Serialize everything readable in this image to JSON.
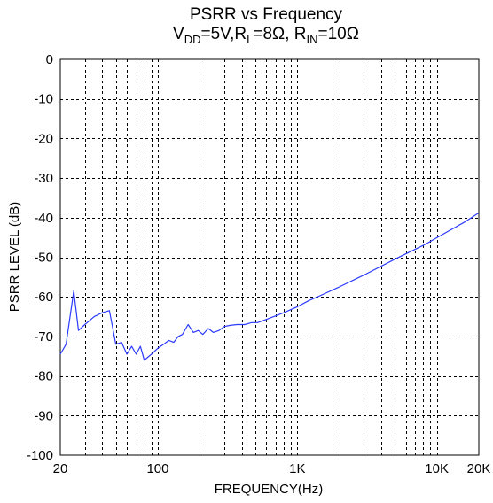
{
  "chart_data": {
    "type": "line",
    "title": "PSRR vs Frequency",
    "subtitle": {
      "parts": [
        {
          "text": "V",
          "sub": false
        },
        {
          "text": "DD",
          "sub": true
        },
        {
          "text": "=5V,R",
          "sub": false
        },
        {
          "text": "L",
          "sub": true
        },
        {
          "text": "=8Ω, R",
          "sub": false
        },
        {
          "text": "IN",
          "sub": true
        },
        {
          "text": "=10Ω",
          "sub": false
        }
      ]
    },
    "xlabel": "FREQUENCY(Hz)",
    "ylabel": "PSRR LEVEL (dB)",
    "xscale": "log",
    "xlim": [
      20,
      20000
    ],
    "ylim": [
      -100,
      0
    ],
    "xticks": [
      {
        "value": 20,
        "label": "20"
      },
      {
        "value": 100,
        "label": "100"
      },
      {
        "value": 1000,
        "label": "1K"
      },
      {
        "value": 10000,
        "label": "10K"
      },
      {
        "value": 20000,
        "label": "20K"
      }
    ],
    "yticks": [
      {
        "value": 0,
        "label": "0"
      },
      {
        "value": -10,
        "label": "-10"
      },
      {
        "value": -20,
        "label": "-20"
      },
      {
        "value": -30,
        "label": "-30"
      },
      {
        "value": -40,
        "label": "-40"
      },
      {
        "value": -50,
        "label": "-50"
      },
      {
        "value": -60,
        "label": "-60"
      },
      {
        "value": -70,
        "label": "-70"
      },
      {
        "value": -80,
        "label": "-80"
      },
      {
        "value": -90,
        "label": "-90"
      },
      {
        "value": -100,
        "label": "-100"
      }
    ],
    "grid": true,
    "grid_style": "dashed",
    "series": [
      {
        "color": "#2b3bff",
        "x": [
          20,
          22,
          25,
          27,
          30,
          35,
          40,
          45,
          50,
          55,
          60,
          65,
          70,
          75,
          80,
          90,
          100,
          110,
          120,
          130,
          140,
          150,
          165,
          180,
          195,
          210,
          230,
          250,
          275,
          300,
          330,
          370,
          420,
          470,
          520,
          600,
          700,
          800,
          1000,
          1200,
          1500,
          2000,
          3000,
          5000,
          8000,
          12000,
          16000,
          20000
        ],
        "y": [
          -74.5,
          -72,
          -58.5,
          -68.5,
          -67,
          -65,
          -64,
          -63.5,
          -72,
          -71.5,
          -74.5,
          -72.5,
          -74.5,
          -72.5,
          -76,
          -74.5,
          -73,
          -72,
          -71,
          -71.5,
          -70,
          -69.5,
          -67,
          -69,
          -68.5,
          -69.5,
          -68,
          -69,
          -68.5,
          -67.5,
          -67.2,
          -67,
          -67,
          -66.5,
          -66.5,
          -65.7,
          -64.8,
          -64,
          -62.5,
          -61,
          -59.5,
          -57.5,
          -54.5,
          -50.5,
          -47,
          -43.5,
          -41,
          -38.8
        ]
      }
    ]
  }
}
